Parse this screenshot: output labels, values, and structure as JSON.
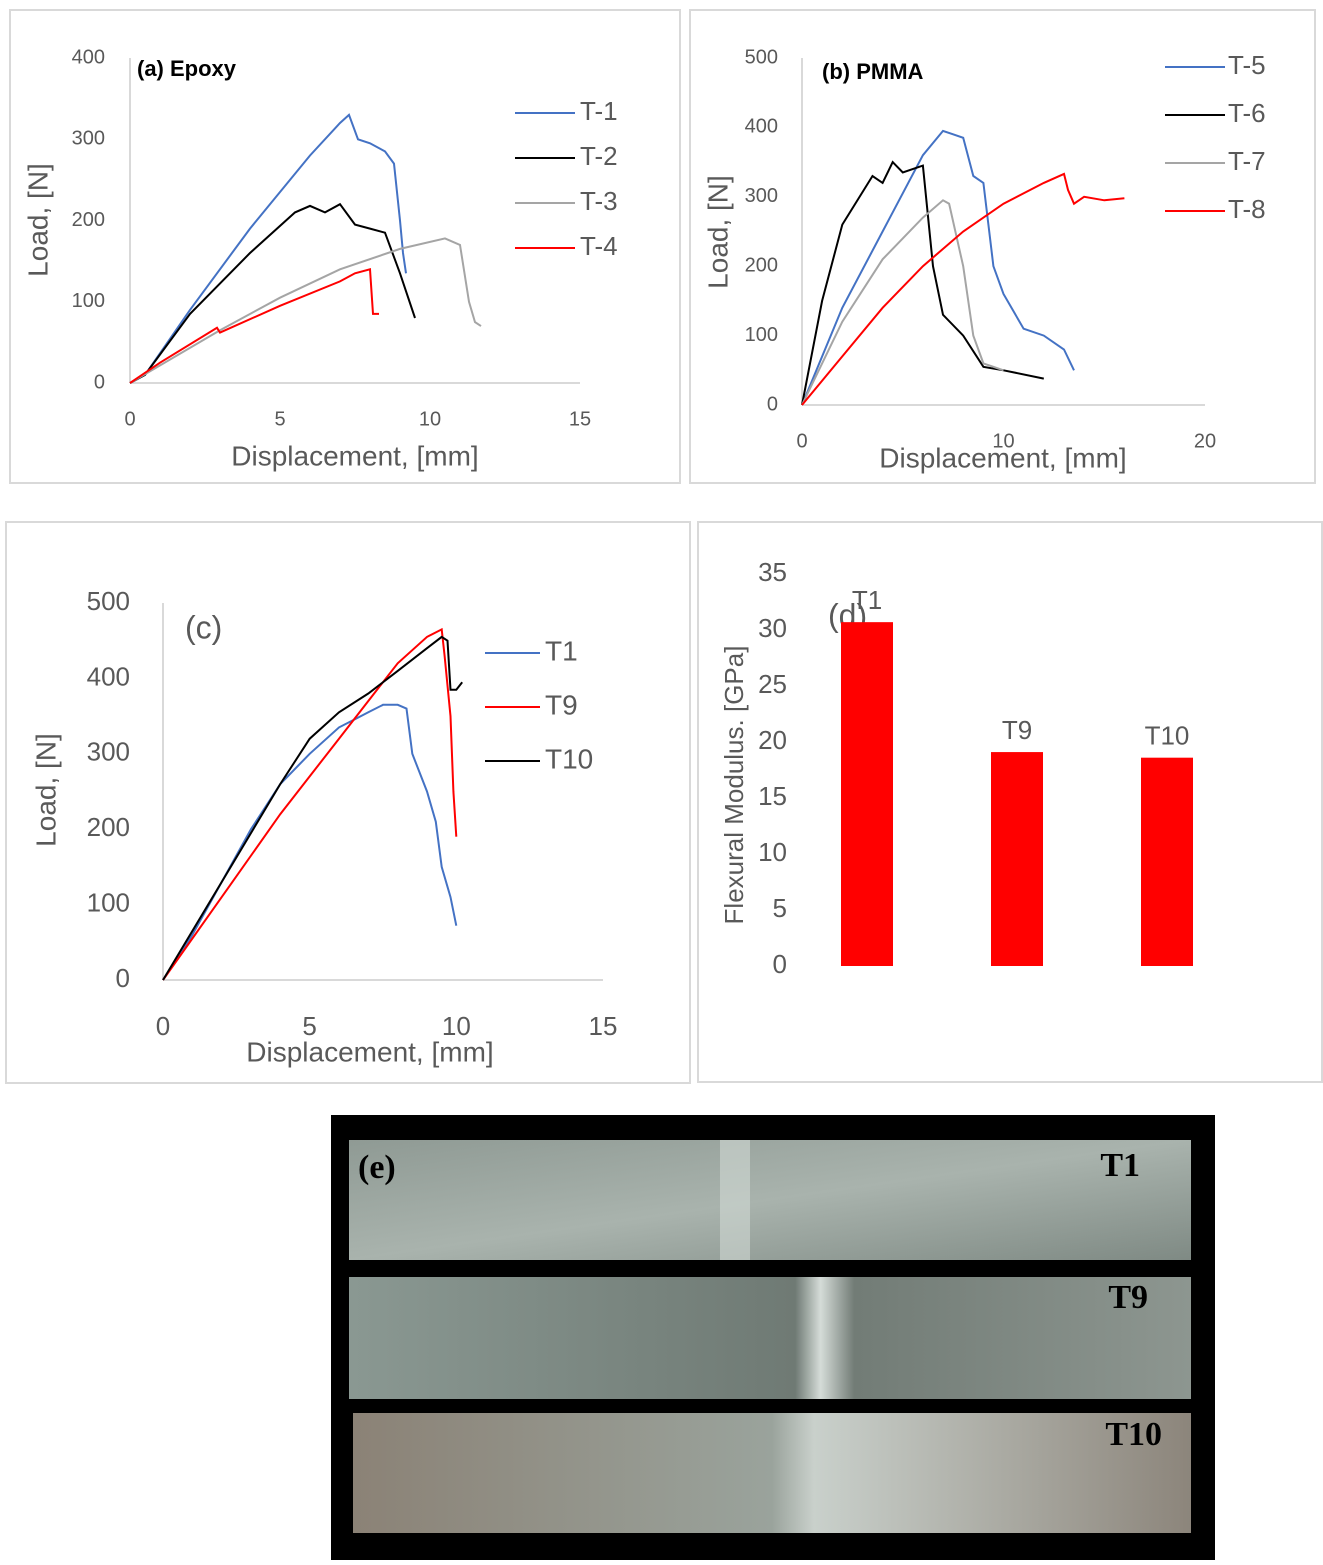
{
  "chart_data": [
    {
      "type": "line",
      "title": "(a) Epoxy",
      "xlabel": "Displacement, [mm]",
      "ylabel": "Load, [N]",
      "xlim": [
        0,
        15
      ],
      "xticks": [
        0,
        5,
        10,
        15
      ],
      "ylim": [
        0,
        400
      ],
      "yticks": [
        0,
        100,
        200,
        300,
        400
      ],
      "grid": false,
      "legend": "right",
      "series": [
        {
          "name": "T-1",
          "color": "#4472c4",
          "x": [
            0,
            0.5,
            2,
            4,
            6,
            7,
            7.3,
            7.6,
            8,
            8.5,
            8.8,
            9,
            9.1,
            9.2
          ],
          "values": [
            0,
            10,
            90,
            190,
            280,
            320,
            330,
            300,
            295,
            285,
            270,
            200,
            160,
            135
          ]
        },
        {
          "name": "T-2",
          "color": "#000000",
          "x": [
            0,
            0.5,
            2,
            4,
            5.5,
            6,
            6.5,
            7,
            7.5,
            8,
            8.5,
            9,
            9.5
          ],
          "values": [
            0,
            10,
            85,
            160,
            210,
            218,
            210,
            220,
            195,
            190,
            185,
            135,
            80
          ]
        },
        {
          "name": "T-3",
          "color": "#a5a5a5",
          "x": [
            0,
            3,
            5,
            7,
            9,
            10.5,
            11,
            11.3,
            11.5,
            11.7
          ],
          "values": [
            0,
            65,
            105,
            140,
            165,
            178,
            170,
            100,
            75,
            70
          ]
        },
        {
          "name": "T-4",
          "color": "#ff0000",
          "x": [
            0,
            1,
            2.9,
            3,
            5,
            7,
            7.5,
            8,
            8.1,
            8.3
          ],
          "values": [
            0,
            25,
            68,
            62,
            95,
            125,
            135,
            140,
            85,
            85
          ]
        }
      ]
    },
    {
      "type": "line",
      "title": "(b) PMMA",
      "xlabel": "Displacement, [mm]",
      "ylabel": "Load, [N]",
      "xlim": [
        0,
        20
      ],
      "xticks": [
        0,
        10,
        20
      ],
      "ylim": [
        0,
        500
      ],
      "yticks": [
        0,
        100,
        200,
        300,
        400,
        500
      ],
      "grid": false,
      "legend": "right",
      "series": [
        {
          "name": "T-5",
          "color": "#4472c4",
          "x": [
            0,
            2,
            4,
            6,
            7,
            7.5,
            8,
            8.5,
            9,
            9.5,
            10,
            11,
            12,
            13,
            13.5
          ],
          "values": [
            0,
            140,
            250,
            360,
            395,
            390,
            385,
            330,
            320,
            200,
            160,
            110,
            100,
            80,
            50
          ]
        },
        {
          "name": "T-6",
          "color": "#000000",
          "x": [
            0,
            1,
            2,
            3.5,
            4,
            4.5,
            5,
            6,
            6.5,
            7,
            8,
            9,
            10,
            12
          ],
          "values": [
            0,
            150,
            260,
            330,
            320,
            350,
            335,
            345,
            200,
            130,
            100,
            55,
            50,
            38
          ]
        },
        {
          "name": "T-7",
          "color": "#a5a5a5",
          "x": [
            0,
            2,
            4,
            6,
            7,
            7.3,
            8,
            8.5,
            9,
            9.5,
            10
          ],
          "values": [
            0,
            120,
            210,
            270,
            295,
            290,
            200,
            100,
            60,
            55,
            50
          ]
        },
        {
          "name": "T-8",
          "color": "#ff0000",
          "x": [
            0,
            2,
            4,
            6,
            8,
            10,
            12,
            13,
            13.2,
            13.5,
            14,
            15,
            16
          ],
          "values": [
            0,
            70,
            140,
            200,
            250,
            290,
            320,
            333,
            310,
            290,
            300,
            295,
            298
          ]
        }
      ]
    },
    {
      "type": "line",
      "title": "(c)",
      "xlabel": "Displacement, [mm]",
      "ylabel": "Load, [N]",
      "xlim": [
        0,
        15
      ],
      "xticks": [
        0,
        5,
        10,
        15
      ],
      "ylim": [
        0,
        500
      ],
      "yticks": [
        0,
        100,
        200,
        300,
        400,
        500
      ],
      "grid": false,
      "legend": "right",
      "series": [
        {
          "name": "T1",
          "color": "#4472c4",
          "x": [
            0,
            1,
            2,
            3,
            4,
            5,
            6,
            6.5,
            7,
            7.5,
            8,
            8.3,
            8.5,
            9,
            9.3,
            9.5,
            9.8,
            10
          ],
          "values": [
            0,
            60,
            130,
            200,
            260,
            300,
            335,
            345,
            355,
            365,
            365,
            360,
            300,
            250,
            210,
            150,
            110,
            72
          ]
        },
        {
          "name": "T9",
          "color": "#ff0000",
          "x": [
            0,
            2,
            4,
            6,
            7,
            8,
            9,
            9.5,
            9.6,
            9.8,
            9.9,
            10
          ],
          "values": [
            0,
            110,
            220,
            320,
            370,
            420,
            455,
            465,
            430,
            350,
            250,
            190
          ]
        },
        {
          "name": "T10",
          "color": "#000000",
          "x": [
            0,
            2,
            4,
            5,
            6,
            7,
            8,
            9,
            9.5,
            9.7,
            9.8,
            10,
            10.2
          ],
          "values": [
            0,
            130,
            260,
            320,
            355,
            380,
            410,
            440,
            455,
            450,
            385,
            385,
            395
          ]
        }
      ]
    },
    {
      "type": "bar",
      "title": "(d)",
      "ylabel": "Flexural Modulus. [GPa]",
      "categories": [
        "T1",
        "T9",
        "T10"
      ],
      "values": [
        30.7,
        19.1,
        18.6
      ],
      "color": "#ff0000",
      "ylim": [
        0,
        35
      ],
      "yticks": [
        0,
        5,
        10,
        15,
        20,
        25,
        30,
        35
      ],
      "grid": false
    }
  ],
  "photo": {
    "label": "(e)",
    "specimens": [
      "T1",
      "T9",
      "T10"
    ]
  }
}
